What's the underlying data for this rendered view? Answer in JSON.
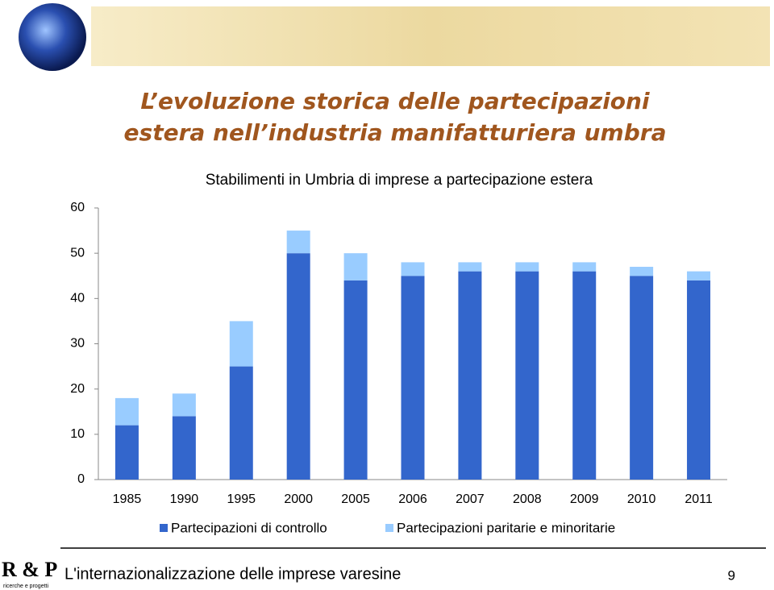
{
  "slide": {
    "title_lines": [
      "L’evoluzione storica delle partecipazioni",
      "estera nell’industria manifatturiera umbra"
    ],
    "footer": "L'internazionalizzazione delle imprese varesine",
    "page_number": "9",
    "logo_text": "R & P",
    "logo_subtext": "ricerche e progetti"
  },
  "chart_data": {
    "type": "stacked-bar",
    "title": "Stabilimenti in Umbria di imprese a partecipazione estera",
    "categories": [
      "1985",
      "1990",
      "1995",
      "2000",
      "2005",
      "2006",
      "2007",
      "2008",
      "2009",
      "2010",
      "2011"
    ],
    "series": [
      {
        "name": "Partecipazioni di controllo",
        "color": "#3366cc",
        "values": [
          12,
          14,
          25,
          50,
          44,
          45,
          46,
          46,
          46,
          45,
          44
        ]
      },
      {
        "name": "Partecipazioni paritarie e minoritarie",
        "color": "#99ccff",
        "values": [
          6,
          5,
          10,
          5,
          6,
          3,
          2,
          2,
          2,
          2,
          2
        ]
      }
    ],
    "ylim": [
      0,
      60
    ],
    "yticks": [
      0,
      10,
      20,
      30,
      40,
      50,
      60
    ],
    "grid": false,
    "legend": "bottom"
  }
}
